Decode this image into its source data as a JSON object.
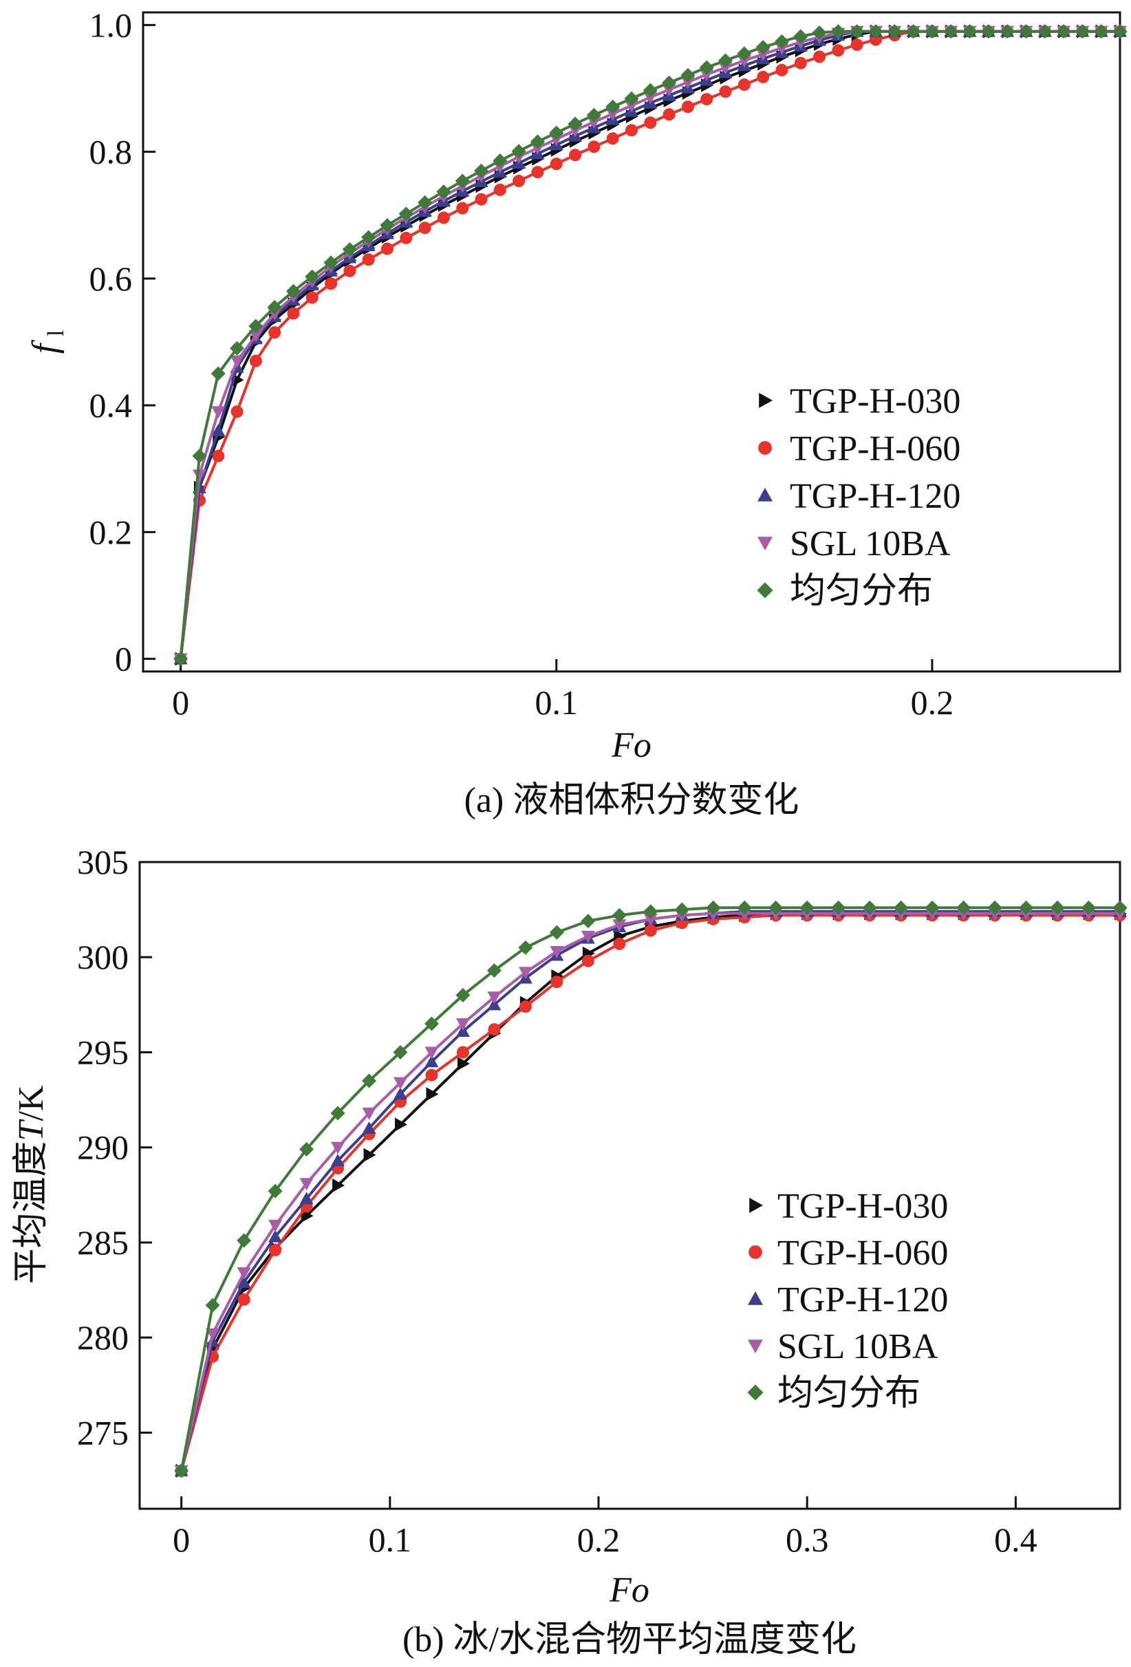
{
  "colors": {
    "TGP-H-030": "#111111",
    "TGP-H-060": "#e8332a",
    "TGP-H-120": "#3a3f8f",
    "SGL 10BA": "#a95ca8",
    "uniform": "#3f7a38"
  },
  "chart_data": [
    {
      "type": "line",
      "caption": "(a) 液相体积分数变化",
      "xlabel": "Fo",
      "ylabel": "f",
      "ylabel_sub": "l",
      "xlim": [
        -0.01,
        0.25
      ],
      "ylim": [
        -0.02,
        1.02
      ],
      "xticks": [
        0,
        0.1,
        0.2
      ],
      "xtick_labels": [
        "0",
        "0.1",
        "0.2"
      ],
      "yticks": [
        0,
        0.2,
        0.4,
        0.6,
        0.8,
        1.0
      ],
      "ytick_labels": [
        "0",
        "0.2",
        "0.4",
        "0.6",
        "0.8",
        "1.0"
      ],
      "legend": [
        "TGP-H-030",
        "TGP-H-060",
        "TGP-H-120",
        "SGL 10BA",
        "均匀分布"
      ],
      "legend_position": "center-right",
      "x": [
        0,
        0.005,
        0.01,
        0.015,
        0.02,
        0.025,
        0.03,
        0.035,
        0.04,
        0.045,
        0.05,
        0.055,
        0.06,
        0.065,
        0.07,
        0.075,
        0.08,
        0.085,
        0.09,
        0.095,
        0.1,
        0.105,
        0.11,
        0.115,
        0.12,
        0.125,
        0.13,
        0.135,
        0.14,
        0.145,
        0.15,
        0.155,
        0.16,
        0.165,
        0.17,
        0.175,
        0.18,
        0.185,
        0.19,
        0.195,
        0.2,
        0.205,
        0.21,
        0.215,
        0.22,
        0.225,
        0.23,
        0.235,
        0.24,
        0.245,
        0.25
      ],
      "series": [
        {
          "name": "TGP-H-030",
          "marker": "triangle-right",
          "values": [
            0,
            0.27,
            0.35,
            0.44,
            0.5,
            0.535,
            0.56,
            0.585,
            0.608,
            0.629,
            0.648,
            0.666,
            0.683,
            0.7,
            0.716,
            0.731,
            0.746,
            0.761,
            0.775,
            0.789,
            0.803,
            0.817,
            0.83,
            0.843,
            0.856,
            0.869,
            0.881,
            0.893,
            0.905,
            0.917,
            0.928,
            0.939,
            0.95,
            0.96,
            0.97,
            0.978,
            0.985,
            0.99,
            0.99,
            0.99,
            0.99,
            0.99,
            0.99,
            0.99,
            0.99,
            0.99,
            0.99,
            0.99,
            0.99,
            0.99,
            0.99
          ]
        },
        {
          "name": "TGP-H-060",
          "marker": "circle",
          "values": [
            0,
            0.25,
            0.32,
            0.39,
            0.47,
            0.515,
            0.545,
            0.57,
            0.592,
            0.612,
            0.63,
            0.647,
            0.664,
            0.68,
            0.696,
            0.711,
            0.725,
            0.74,
            0.754,
            0.768,
            0.781,
            0.795,
            0.808,
            0.821,
            0.834,
            0.846,
            0.859,
            0.871,
            0.883,
            0.895,
            0.906,
            0.918,
            0.929,
            0.94,
            0.95,
            0.96,
            0.969,
            0.977,
            0.984,
            0.99,
            0.99,
            0.99,
            0.99,
            0.99,
            0.99,
            0.99,
            0.99,
            0.99,
            0.99,
            0.99,
            0.99
          ]
        },
        {
          "name": "TGP-H-120",
          "marker": "triangle-up",
          "values": [
            0,
            0.27,
            0.36,
            0.46,
            0.505,
            0.54,
            0.566,
            0.59,
            0.612,
            0.633,
            0.652,
            0.671,
            0.689,
            0.706,
            0.722,
            0.738,
            0.753,
            0.768,
            0.782,
            0.797,
            0.811,
            0.825,
            0.838,
            0.851,
            0.864,
            0.877,
            0.889,
            0.901,
            0.913,
            0.925,
            0.936,
            0.947,
            0.957,
            0.967,
            0.976,
            0.984,
            0.99,
            0.99,
            0.99,
            0.99,
            0.99,
            0.99,
            0.99,
            0.99,
            0.99,
            0.99,
            0.99,
            0.99,
            0.99,
            0.99,
            0.99
          ]
        },
        {
          "name": "SGL 10BA",
          "marker": "triangle-down",
          "values": [
            0,
            0.29,
            0.39,
            0.47,
            0.51,
            0.545,
            0.572,
            0.596,
            0.619,
            0.64,
            0.659,
            0.678,
            0.696,
            0.713,
            0.73,
            0.746,
            0.762,
            0.777,
            0.792,
            0.806,
            0.82,
            0.834,
            0.847,
            0.86,
            0.873,
            0.886,
            0.898,
            0.91,
            0.922,
            0.933,
            0.944,
            0.954,
            0.964,
            0.973,
            0.981,
            0.987,
            0.99,
            0.99,
            0.99,
            0.99,
            0.99,
            0.99,
            0.99,
            0.99,
            0.99,
            0.99,
            0.99,
            0.99,
            0.99,
            0.99,
            0.99
          ]
        },
        {
          "name": "均匀分布",
          "marker": "diamond",
          "values": [
            0,
            0.32,
            0.45,
            0.49,
            0.525,
            0.555,
            0.58,
            0.603,
            0.625,
            0.646,
            0.665,
            0.684,
            0.702,
            0.72,
            0.737,
            0.754,
            0.77,
            0.786,
            0.801,
            0.816,
            0.83,
            0.844,
            0.858,
            0.871,
            0.884,
            0.897,
            0.909,
            0.921,
            0.933,
            0.944,
            0.955,
            0.965,
            0.974,
            0.982,
            0.988,
            0.99,
            0.99,
            0.99,
            0.99,
            0.99,
            0.99,
            0.99,
            0.99,
            0.99,
            0.99,
            0.99,
            0.99,
            0.99,
            0.99,
            0.99,
            0.99
          ]
        }
      ]
    },
    {
      "type": "line",
      "caption": "(b) 冰/水混合物平均温度变化",
      "xlabel": "Fo",
      "ylabel_pre": "平均温度",
      "ylabel_var": "T",
      "ylabel_post": "/K",
      "xlim": [
        -0.02,
        0.45
      ],
      "ylim": [
        271,
        305
      ],
      "xticks": [
        0,
        0.1,
        0.2,
        0.3,
        0.4
      ],
      "xtick_labels": [
        "0",
        "0.1",
        "0.2",
        "0.3",
        "0.4"
      ],
      "yticks": [
        275,
        280,
        285,
        290,
        295,
        300,
        305
      ],
      "ytick_labels": [
        "275",
        "280",
        "285",
        "290",
        "295",
        "300",
        "305"
      ],
      "legend": [
        "TGP-H-030",
        "TGP-H-060",
        "TGP-H-120",
        "SGL 10BA",
        "均匀分布"
      ],
      "legend_position": "center-right",
      "x": [
        0,
        0.015,
        0.03,
        0.045,
        0.06,
        0.075,
        0.09,
        0.105,
        0.12,
        0.135,
        0.15,
        0.165,
        0.18,
        0.195,
        0.21,
        0.225,
        0.24,
        0.255,
        0.27,
        0.285,
        0.3,
        0.315,
        0.33,
        0.345,
        0.36,
        0.375,
        0.39,
        0.405,
        0.42,
        0.435,
        0.45
      ],
      "series": [
        {
          "name": "TGP-H-030",
          "marker": "triangle-right",
          "values": [
            273,
            279.4,
            282.6,
            284.7,
            286.4,
            288.0,
            289.6,
            291.2,
            292.8,
            294.4,
            296.0,
            297.6,
            299.0,
            300.2,
            301.1,
            301.6,
            301.9,
            302.1,
            302.2,
            302.3,
            302.3,
            302.3,
            302.3,
            302.3,
            302.3,
            302.3,
            302.3,
            302.3,
            302.3,
            302.3,
            302.3
          ]
        },
        {
          "name": "TGP-H-060",
          "marker": "circle",
          "values": [
            273,
            279.0,
            282.0,
            284.6,
            286.9,
            288.9,
            290.7,
            292.4,
            293.8,
            295.0,
            296.2,
            297.4,
            298.7,
            299.8,
            300.7,
            301.4,
            301.8,
            302.0,
            302.1,
            302.2,
            302.2,
            302.2,
            302.2,
            302.2,
            302.2,
            302.2,
            302.2,
            302.2,
            302.2,
            302.2,
            302.2
          ]
        },
        {
          "name": "TGP-H-120",
          "marker": "triangle-up",
          "values": [
            273,
            279.8,
            282.9,
            285.3,
            287.3,
            289.3,
            291.0,
            292.8,
            294.5,
            296.1,
            297.5,
            298.9,
            300.1,
            301.0,
            301.6,
            302.0,
            302.2,
            302.3,
            302.4,
            302.4,
            302.4,
            302.4,
            302.4,
            302.4,
            302.4,
            302.4,
            302.4,
            302.4,
            302.4,
            302.4,
            302.4
          ]
        },
        {
          "name": "SGL 10BA",
          "marker": "triangle-down",
          "values": [
            273,
            280.2,
            283.4,
            285.9,
            288.1,
            290.0,
            291.8,
            293.4,
            295.0,
            296.5,
            297.9,
            299.2,
            300.3,
            301.1,
            301.7,
            302.0,
            302.2,
            302.3,
            302.3,
            302.3,
            302.3,
            302.3,
            302.3,
            302.3,
            302.3,
            302.3,
            302.3,
            302.3,
            302.3,
            302.3,
            302.3
          ]
        },
        {
          "name": "均匀分布",
          "marker": "diamond",
          "values": [
            273,
            281.7,
            285.1,
            287.7,
            289.9,
            291.8,
            293.5,
            295.0,
            296.5,
            298.0,
            299.3,
            300.5,
            301.3,
            301.9,
            302.2,
            302.4,
            302.5,
            302.6,
            302.6,
            302.6,
            302.6,
            302.6,
            302.6,
            302.6,
            302.6,
            302.6,
            302.6,
            302.6,
            302.6,
            302.6,
            302.6
          ]
        }
      ]
    }
  ]
}
